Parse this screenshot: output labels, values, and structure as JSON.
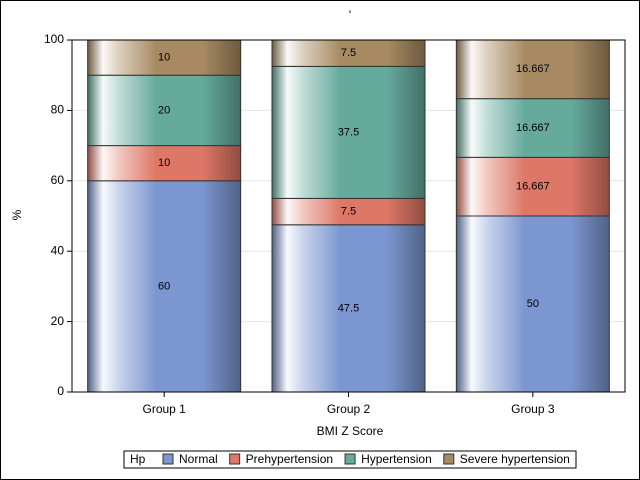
{
  "chart_data": {
    "type": "stacked-bar",
    "title": "'",
    "x_label": "BMI Z Score",
    "y_label": "%",
    "categories": [
      "Group 1",
      "Group 2",
      "Group 3"
    ],
    "series": [
      {
        "name": "Normal",
        "color": "#7b96d0",
        "values": [
          60,
          47.5,
          50
        ]
      },
      {
        "name": "Prehypertension",
        "color": "#dd7766",
        "values": [
          10,
          7.5,
          16.667
        ]
      },
      {
        "name": "Hypertension",
        "color": "#66aa9c",
        "values": [
          20,
          37.5,
          16.667
        ]
      },
      {
        "name": "Severe hypertension",
        "color": "#a88a62",
        "values": [
          10,
          7.5,
          16.667
        ]
      }
    ],
    "legend_title": "Hp",
    "ylim": [
      0,
      100
    ],
    "yticks": [
      0,
      20,
      40,
      60,
      80,
      100
    ],
    "grid": true,
    "legend": "bottom"
  }
}
